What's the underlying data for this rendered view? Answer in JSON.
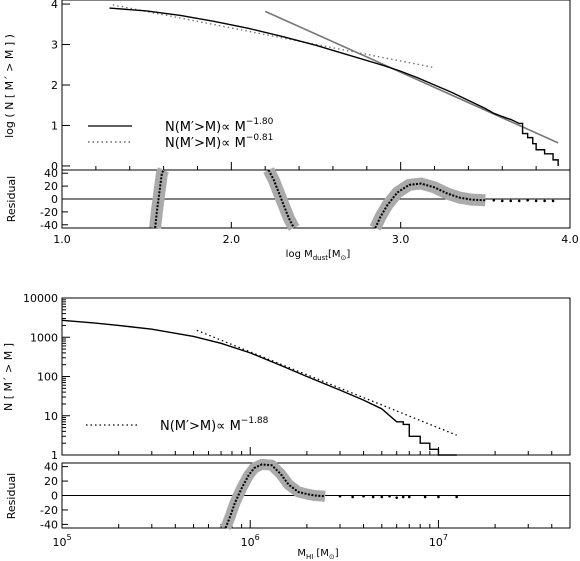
{
  "chart_data": [
    {
      "type": "line",
      "panel": "top-main",
      "xlim": [
        1.0,
        4.0
      ],
      "ylim": [
        -0.1,
        4.1
      ],
      "yticks": [
        0,
        1,
        2,
        3,
        4
      ],
      "ylabel": "log ( N [ M´ > M ] )",
      "legend": [
        {
          "label": "N(M′>M)∝ M",
          "exp": "−1.80",
          "style": "solid"
        },
        {
          "label": "N(M′>M)∝ M",
          "exp": "−0.81",
          "style": "dotted"
        }
      ],
      "series": [
        {
          "name": "data",
          "style": "black",
          "x": [
            1.28,
            1.5,
            1.7,
            1.9,
            2.1,
            2.3,
            2.5,
            2.7,
            2.9,
            3.0,
            3.1,
            3.2,
            3.3,
            3.4,
            3.5,
            3.55,
            3.6,
            3.65,
            3.7,
            3.72,
            3.75,
            3.78,
            3.8,
            3.85,
            3.9,
            3.93
          ],
          "y": [
            3.9,
            3.83,
            3.72,
            3.57,
            3.4,
            3.2,
            2.98,
            2.73,
            2.48,
            2.34,
            2.18,
            2.0,
            1.82,
            1.62,
            1.42,
            1.3,
            1.22,
            1.15,
            1.05,
            0.8,
            0.7,
            0.55,
            0.4,
            0.3,
            0.15,
            0.0
          ]
        },
        {
          "name": "fit1",
          "style": "gray",
          "x": [
            2.2,
            3.93
          ],
          "y": [
            3.82,
            0.57
          ]
        },
        {
          "name": "fit2",
          "style": "dotted",
          "x": [
            1.3,
            3.2
          ],
          "y": [
            3.98,
            2.43
          ]
        }
      ]
    },
    {
      "type": "scatter",
      "panel": "top-residual",
      "xlim": [
        1.0,
        4.0
      ],
      "ylim": [
        -45,
        45
      ],
      "yticks": [
        40,
        20,
        0,
        -20,
        -40
      ],
      "xticks": [
        "1.0",
        "2.0",
        "3.0",
        "4.0"
      ],
      "ylabel": "Residual",
      "xlabel": "log M",
      "xlabel_sub": "dust",
      "xlabel_unit": "[M",
      "xlabel_unit_sub": "⊙",
      "xlabel_end": "]",
      "segments": [
        {
          "x": [
            1.55,
            1.56,
            1.57,
            1.58,
            1.59,
            1.6
          ],
          "y": [
            -45,
            -20,
            0,
            20,
            40,
            45
          ]
        },
        {
          "x": [
            2.22,
            2.25,
            2.28,
            2.31,
            2.34,
            2.37
          ],
          "y": [
            45,
            30,
            10,
            -10,
            -30,
            -45
          ]
        },
        {
          "x": [
            2.85,
            2.88,
            2.92,
            2.98,
            3.05,
            3.12,
            3.2,
            3.28,
            3.35,
            3.42,
            3.5
          ],
          "y": [
            -45,
            -28,
            -10,
            10,
            22,
            24,
            18,
            8,
            2,
            -1,
            -2
          ]
        }
      ],
      "points_x": [
        3.55,
        3.6,
        3.65,
        3.7,
        3.75,
        3.8,
        3.85,
        3.9
      ],
      "points_y": [
        -2,
        -3,
        -3,
        -3,
        -2,
        -3,
        -3,
        -3
      ]
    },
    {
      "type": "line",
      "panel": "bottom-main",
      "xscale": "log",
      "xlim": [
        100000,
        50000000
      ],
      "ylim": [
        1,
        10000
      ],
      "yticks": [
        "1",
        "10",
        "100",
        "1000",
        "10000"
      ],
      "ylabel": "N [ M´ > M ]",
      "legend": [
        {
          "label": "N(M′>M)∝ M",
          "exp": "−1.88",
          "style": "dotted"
        }
      ],
      "series": [
        {
          "name": "data",
          "style": "black",
          "x": [
            100000,
            150000,
            200000,
            300000,
            500000,
            700000,
            1000000,
            1500000,
            2000000,
            3000000,
            4000000,
            5000000,
            6000000,
            6500000,
            7000000,
            8000000,
            9000000,
            10000000,
            12500000
          ],
          "y": [
            2700,
            2300,
            2000,
            1600,
            1050,
            700,
            400,
            180,
            100,
            45,
            25,
            15,
            7,
            6,
            3,
            2,
            1.4,
            1,
            1
          ]
        },
        {
          "name": "fit",
          "style": "dotted",
          "x": [
            520000,
            12500000
          ],
          "y": [
            1500,
            3.2
          ]
        }
      ]
    },
    {
      "type": "scatter",
      "panel": "bottom-residual",
      "xscale": "log",
      "xlim": [
        100000,
        50000000
      ],
      "ylim": [
        -45,
        45
      ],
      "yticks": [
        40,
        20,
        0,
        -20,
        -40
      ],
      "ylabel": "Residual",
      "xlabel": "M",
      "xlabel_sub": "HI",
      "xlabel_unit": "[M",
      "xlabel_unit_sub": "⊙",
      "xlabel_end": "]",
      "xtick_base": "10",
      "xtick_exps": [
        "5",
        "6",
        "7"
      ],
      "segments": [
        {
          "x": [
            740000,
            780000,
            830000,
            900000,
            980000,
            1050000,
            1150000,
            1300000,
            1450000,
            1600000,
            1800000,
            2000000,
            2200000,
            2500000
          ],
          "y": [
            -45,
            -30,
            -10,
            10,
            28,
            38,
            43,
            42,
            30,
            15,
            5,
            2,
            0,
            -1
          ]
        }
      ],
      "points_x": [
        3000000,
        3500000,
        4000000,
        4500000,
        5000000,
        5500000,
        6000000,
        6500000,
        7000000,
        8500000,
        10000000,
        12500000
      ],
      "points_y": [
        -1,
        -2,
        -1,
        -2,
        -2,
        -1,
        -3,
        -2,
        -2,
        -2,
        -2,
        -2
      ]
    }
  ]
}
